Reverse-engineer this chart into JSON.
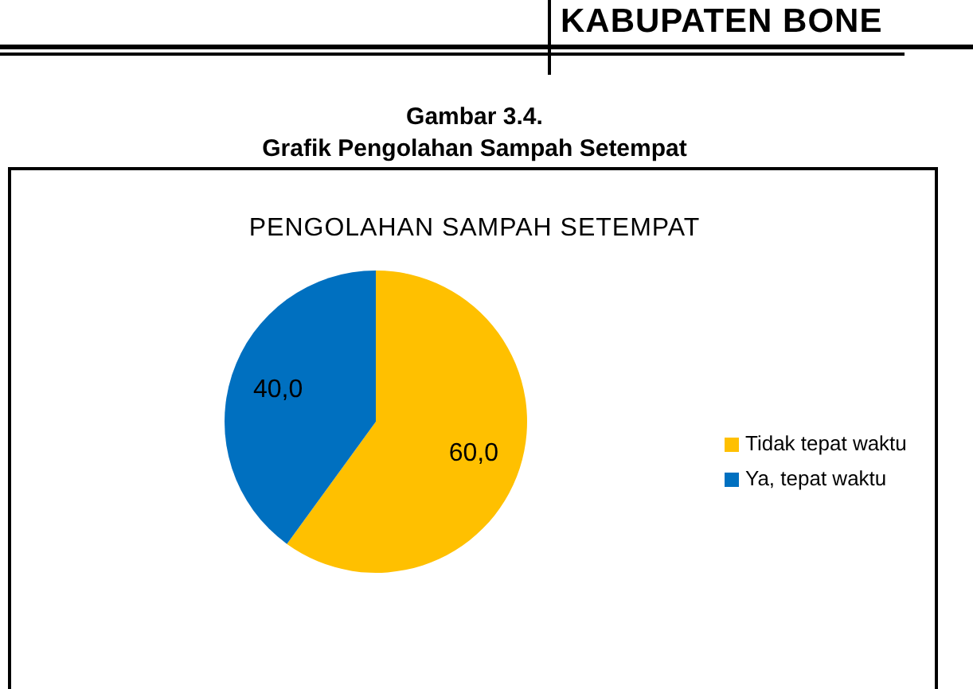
{
  "chart_data": {
    "type": "pie",
    "title": "PENGOLAHAN SAMPAH SETEMPAT",
    "annotations": [
      "KABUPATEN BONE",
      "Gambar 3.4.",
      "Grafik Pengolahan Sampah Setempat"
    ],
    "categories": [
      "Tidak tepat waktu",
      "Ya, tepat waktu"
    ],
    "values": [
      60,
      40
    ],
    "colors": [
      "#ffc000",
      "#0070c0"
    ],
    "value_labels": [
      "60,0",
      "40,0"
    ],
    "legend": "right"
  }
}
